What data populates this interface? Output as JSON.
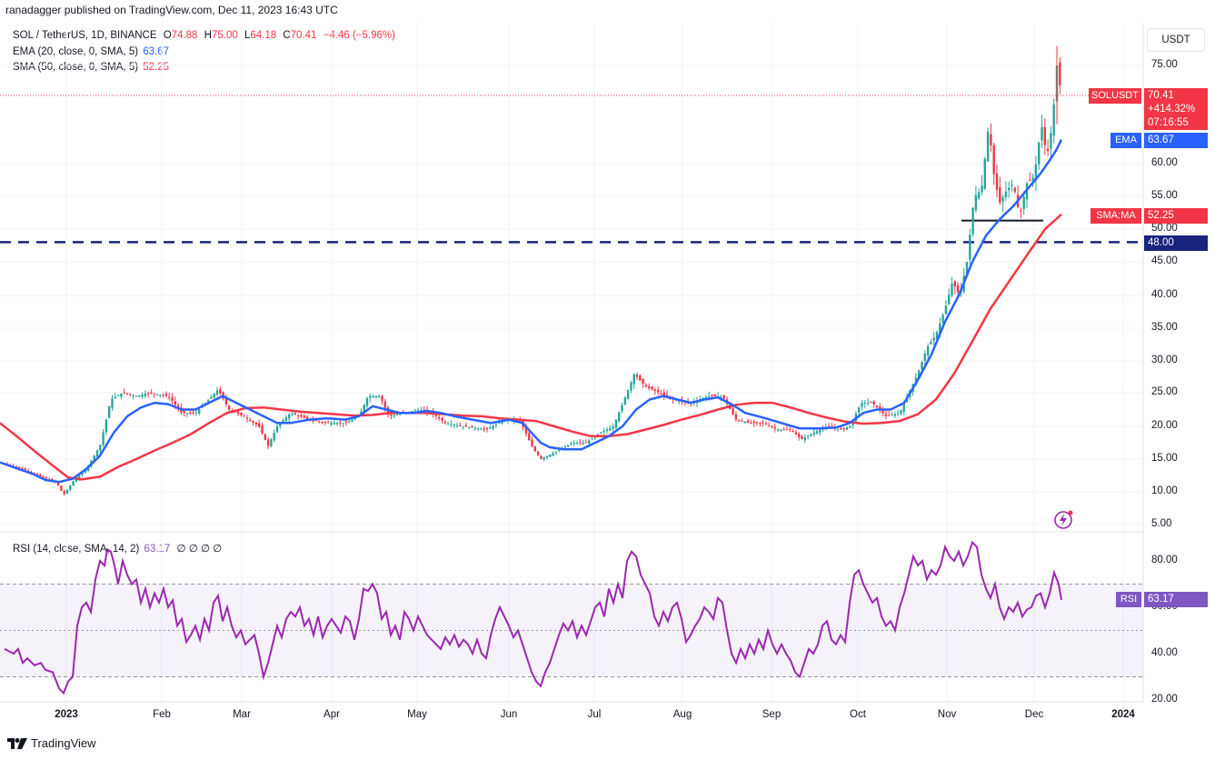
{
  "header": {
    "published": "ranadagger published on TradingView.com, Dec 11, 2023 16:43 UTC"
  },
  "legend": {
    "symbol": "SOL / TetherUS, 1D, BINANCE",
    "o_label": "O",
    "o": "74.88",
    "h_label": "H",
    "h": "75.00",
    "l_label": "L",
    "l": "64.18",
    "c_label": "C",
    "c": "70.41",
    "change": "−4.46 (−5.96%)",
    "ema_label": "EMA (20, close, 0, SMA, 5)",
    "ema_value": "63.67",
    "sma_label": "SMA (50, close, 0, SMA, 5)",
    "sma_value": "52.25",
    "rsi_label": "RSI (14, close, SMA, 14, 2)",
    "rsi_value": "63.17",
    "rsi_extra": "∅ ∅ ∅ ∅"
  },
  "axis": {
    "currency_button": "USDT"
  },
  "price_tags": {
    "sol_name": "SOLUSDT",
    "sol_price": "70.41",
    "sol_change": "+414.32%",
    "sol_countdown": "07:16:55",
    "ema_name": "EMA",
    "ema_value": "63.67",
    "sma_name": "SMA:MA",
    "sma_value": "52.25",
    "level_value": "48.00",
    "rsi_name": "RSI",
    "rsi_value": "63.17"
  },
  "footer": {
    "brand": "TradingView"
  },
  "colors": {
    "up": "#26a69a",
    "down": "#f23645",
    "ema": "#2962ff",
    "sma": "#f23645",
    "rsi": "#9c27b0",
    "level": "#1a237e"
  },
  "chart_data": {
    "type": "candlestick",
    "price_ticks": [
      "75.00",
      "60.00",
      "55.00",
      "50.00",
      "45.00",
      "40.00",
      "35.00",
      "30.00",
      "25.00",
      "20.00",
      "15.00",
      "10.00",
      "5.00"
    ],
    "rsi_ticks": [
      "80.00",
      "60.00",
      "40.00",
      "20.00"
    ],
    "x_ticks": [
      "2023",
      "Feb",
      "Mar",
      "Apr",
      "May",
      "Jun",
      "Jul",
      "Aug",
      "Sep",
      "Oct",
      "Nov",
      "Dec",
      "2024"
    ],
    "support_level": 48.0,
    "rsi_band": [
      30,
      70
    ],
    "rsi_midline": 50,
    "ema20": [
      [
        0,
        14.5
      ],
      [
        20,
        13.5
      ],
      [
        35,
        12.8
      ],
      [
        50,
        11.8
      ],
      [
        65,
        11.5
      ],
      [
        80,
        12
      ],
      [
        95,
        13.5
      ],
      [
        110,
        15.5
      ],
      [
        125,
        19
      ],
      [
        140,
        21.5
      ],
      [
        155,
        22.8
      ],
      [
        170,
        23.5
      ],
      [
        185,
        23.3
      ],
      [
        200,
        22.5
      ],
      [
        215,
        22.5
      ],
      [
        230,
        23.5
      ],
      [
        245,
        24.5
      ],
      [
        260,
        23.5
      ],
      [
        275,
        22.5
      ],
      [
        290,
        21.5
      ],
      [
        305,
        20.5
      ],
      [
        320,
        20.5
      ],
      [
        340,
        21
      ],
      [
        360,
        21.2
      ],
      [
        380,
        21
      ],
      [
        395,
        21.5
      ],
      [
        410,
        23
      ],
      [
        425,
        22.5
      ],
      [
        440,
        22
      ],
      [
        455,
        22
      ],
      [
        470,
        22.3
      ],
      [
        485,
        22
      ],
      [
        500,
        21.5
      ],
      [
        520,
        21
      ],
      [
        540,
        20.5
      ],
      [
        560,
        21
      ],
      [
        575,
        20.5
      ],
      [
        585,
        19
      ],
      [
        595,
        17.5
      ],
      [
        605,
        16.8
      ],
      [
        620,
        16.5
      ],
      [
        640,
        16.5
      ],
      [
        655,
        17.5
      ],
      [
        670,
        18.5
      ],
      [
        685,
        20
      ],
      [
        700,
        22.5
      ],
      [
        715,
        24
      ],
      [
        730,
        24.5
      ],
      [
        745,
        24
      ],
      [
        760,
        23.5
      ],
      [
        775,
        24
      ],
      [
        790,
        24.3
      ],
      [
        805,
        23.3
      ],
      [
        820,
        22
      ],
      [
        840,
        21.3
      ],
      [
        860,
        20.5
      ],
      [
        880,
        19.7
      ],
      [
        900,
        19.7
      ],
      [
        920,
        19.8
      ],
      [
        935,
        20.5
      ],
      [
        950,
        22
      ],
      [
        965,
        22.5
      ],
      [
        980,
        22.5
      ],
      [
        995,
        23.5
      ],
      [
        1010,
        27
      ],
      [
        1025,
        31
      ],
      [
        1040,
        36
      ],
      [
        1055,
        40
      ],
      [
        1070,
        45
      ],
      [
        1085,
        49
      ],
      [
        1100,
        51.5
      ],
      [
        1115,
        53.5
      ],
      [
        1130,
        56
      ],
      [
        1145,
        58.5
      ],
      [
        1155,
        60.5
      ],
      [
        1162,
        62
      ],
      [
        1168,
        63.67
      ]
    ],
    "sma50": [
      [
        0,
        20.5
      ],
      [
        20,
        18.3
      ],
      [
        40,
        16
      ],
      [
        60,
        13.8
      ],
      [
        75,
        12.2
      ],
      [
        90,
        11.9
      ],
      [
        110,
        12.3
      ],
      [
        130,
        13.8
      ],
      [
        150,
        15
      ],
      [
        170,
        16.3
      ],
      [
        190,
        17.5
      ],
      [
        210,
        18.8
      ],
      [
        230,
        20.5
      ],
      [
        250,
        22
      ],
      [
        270,
        22.7
      ],
      [
        290,
        22.8
      ],
      [
        310,
        22.5
      ],
      [
        330,
        22.2
      ],
      [
        350,
        22
      ],
      [
        370,
        21.8
      ],
      [
        390,
        21.6
      ],
      [
        410,
        21.7
      ],
      [
        430,
        22
      ],
      [
        450,
        22
      ],
      [
        470,
        22
      ],
      [
        490,
        21.8
      ],
      [
        510,
        21.6
      ],
      [
        530,
        21.5
      ],
      [
        550,
        21.2
      ],
      [
        570,
        21
      ],
      [
        590,
        20.8
      ],
      [
        610,
        20
      ],
      [
        630,
        19.2
      ],
      [
        650,
        18.5
      ],
      [
        670,
        18.5
      ],
      [
        690,
        18.8
      ],
      [
        710,
        19.5
      ],
      [
        730,
        20.2
      ],
      [
        750,
        21
      ],
      [
        770,
        21.7
      ],
      [
        790,
        22.5
      ],
      [
        810,
        23.2
      ],
      [
        830,
        23.5
      ],
      [
        850,
        23.5
      ],
      [
        870,
        22.8
      ],
      [
        890,
        22
      ],
      [
        910,
        21.3
      ],
      [
        930,
        20.7
      ],
      [
        950,
        20.4
      ],
      [
        970,
        20.5
      ],
      [
        990,
        20.8
      ],
      [
        1010,
        21.8
      ],
      [
        1030,
        24
      ],
      [
        1050,
        28
      ],
      [
        1070,
        33
      ],
      [
        1090,
        38
      ],
      [
        1110,
        42
      ],
      [
        1130,
        46
      ],
      [
        1150,
        50
      ],
      [
        1168,
        52.25
      ]
    ],
    "rsi": [
      [
        5,
        42
      ],
      [
        15,
        40
      ],
      [
        20,
        42
      ],
      [
        25,
        36
      ],
      [
        30,
        38
      ],
      [
        38,
        35
      ],
      [
        45,
        36
      ],
      [
        50,
        33
      ],
      [
        58,
        32
      ],
      [
        65,
        25
      ],
      [
        70,
        23
      ],
      [
        75,
        28
      ],
      [
        80,
        30
      ],
      [
        85,
        52
      ],
      [
        90,
        60
      ],
      [
        95,
        62
      ],
      [
        100,
        58
      ],
      [
        105,
        72
      ],
      [
        110,
        80
      ],
      [
        115,
        78
      ],
      [
        118,
        85
      ],
      [
        122,
        84
      ],
      [
        126,
        78
      ],
      [
        130,
        70
      ],
      [
        135,
        80
      ],
      [
        140,
        74
      ],
      [
        145,
        70
      ],
      [
        150,
        72
      ],
      [
        155,
        62
      ],
      [
        160,
        68
      ],
      [
        165,
        60
      ],
      [
        170,
        66
      ],
      [
        175,
        62
      ],
      [
        180,
        68
      ],
      [
        185,
        60
      ],
      [
        190,
        63
      ],
      [
        195,
        52
      ],
      [
        200,
        55
      ],
      [
        205,
        45
      ],
      [
        210,
        48
      ],
      [
        215,
        52
      ],
      [
        220,
        46
      ],
      [
        225,
        55
      ],
      [
        230,
        50
      ],
      [
        235,
        62
      ],
      [
        240,
        65
      ],
      [
        245,
        54
      ],
      [
        250,
        60
      ],
      [
        255,
        52
      ],
      [
        260,
        47
      ],
      [
        265,
        50
      ],
      [
        270,
        44
      ],
      [
        275,
        46
      ],
      [
        280,
        48
      ],
      [
        285,
        40
      ],
      [
        290,
        30
      ],
      [
        295,
        36
      ],
      [
        300,
        44
      ],
      [
        305,
        52
      ],
      [
        310,
        47
      ],
      [
        315,
        55
      ],
      [
        320,
        58
      ],
      [
        325,
        56
      ],
      [
        330,
        60
      ],
      [
        335,
        52
      ],
      [
        340,
        55
      ],
      [
        345,
        48
      ],
      [
        350,
        56
      ],
      [
        355,
        47
      ],
      [
        360,
        52
      ],
      [
        365,
        55
      ],
      [
        370,
        52
      ],
      [
        375,
        49
      ],
      [
        380,
        56
      ],
      [
        385,
        54
      ],
      [
        390,
        46
      ],
      [
        395,
        55
      ],
      [
        400,
        68
      ],
      [
        405,
        67
      ],
      [
        410,
        70
      ],
      [
        415,
        66
      ],
      [
        420,
        55
      ],
      [
        425,
        58
      ],
      [
        430,
        48
      ],
      [
        435,
        52
      ],
      [
        440,
        46
      ],
      [
        445,
        58
      ],
      [
        450,
        55
      ],
      [
        455,
        50
      ],
      [
        460,
        56
      ],
      [
        465,
        52
      ],
      [
        470,
        48
      ],
      [
        475,
        46
      ],
      [
        480,
        44
      ],
      [
        485,
        42
      ],
      [
        490,
        47
      ],
      [
        495,
        44
      ],
      [
        500,
        48
      ],
      [
        505,
        43
      ],
      [
        510,
        46
      ],
      [
        515,
        44
      ],
      [
        520,
        40
      ],
      [
        525,
        46
      ],
      [
        530,
        40
      ],
      [
        535,
        38
      ],
      [
        540,
        48
      ],
      [
        545,
        55
      ],
      [
        550,
        60
      ],
      [
        555,
        56
      ],
      [
        560,
        52
      ],
      [
        565,
        47
      ],
      [
        570,
        50
      ],
      [
        575,
        44
      ],
      [
        580,
        38
      ],
      [
        585,
        32
      ],
      [
        590,
        28
      ],
      [
        595,
        26
      ],
      [
        600,
        32
      ],
      [
        605,
        36
      ],
      [
        610,
        42
      ],
      [
        615,
        48
      ],
      [
        620,
        53
      ],
      [
        625,
        50
      ],
      [
        630,
        54
      ],
      [
        635,
        47
      ],
      [
        640,
        52
      ],
      [
        645,
        48
      ],
      [
        650,
        54
      ],
      [
        655,
        60
      ],
      [
        660,
        62
      ],
      [
        665,
        56
      ],
      [
        670,
        68
      ],
      [
        675,
        62
      ],
      [
        680,
        70
      ],
      [
        685,
        64
      ],
      [
        690,
        80
      ],
      [
        695,
        84
      ],
      [
        700,
        82
      ],
      [
        705,
        74
      ],
      [
        710,
        70
      ],
      [
        715,
        66
      ],
      [
        720,
        56
      ],
      [
        725,
        52
      ],
      [
        730,
        58
      ],
      [
        735,
        54
      ],
      [
        740,
        60
      ],
      [
        745,
        62
      ],
      [
        750,
        55
      ],
      [
        755,
        45
      ],
      [
        760,
        48
      ],
      [
        765,
        52
      ],
      [
        770,
        55
      ],
      [
        775,
        60
      ],
      [
        780,
        58
      ],
      [
        785,
        55
      ],
      [
        790,
        64
      ],
      [
        795,
        62
      ],
      [
        800,
        50
      ],
      [
        805,
        40
      ],
      [
        810,
        36
      ],
      [
        815,
        42
      ],
      [
        820,
        38
      ],
      [
        825,
        44
      ],
      [
        830,
        40
      ],
      [
        835,
        46
      ],
      [
        840,
        42
      ],
      [
        845,
        50
      ],
      [
        850,
        44
      ],
      [
        855,
        40
      ],
      [
        860,
        44
      ],
      [
        865,
        40
      ],
      [
        870,
        37
      ],
      [
        875,
        32
      ],
      [
        880,
        30
      ],
      [
        885,
        36
      ],
      [
        890,
        42
      ],
      [
        895,
        40
      ],
      [
        900,
        44
      ],
      [
        905,
        52
      ],
      [
        910,
        54
      ],
      [
        915,
        46
      ],
      [
        920,
        44
      ],
      [
        925,
        48
      ],
      [
        930,
        45
      ],
      [
        935,
        62
      ],
      [
        940,
        74
      ],
      [
        945,
        76
      ],
      [
        950,
        70
      ],
      [
        955,
        66
      ],
      [
        960,
        62
      ],
      [
        965,
        64
      ],
      [
        970,
        56
      ],
      [
        975,
        52
      ],
      [
        980,
        54
      ],
      [
        985,
        50
      ],
      [
        990,
        60
      ],
      [
        995,
        66
      ],
      [
        1000,
        74
      ],
      [
        1005,
        82
      ],
      [
        1010,
        78
      ],
      [
        1015,
        80
      ],
      [
        1020,
        72
      ],
      [
        1025,
        76
      ],
      [
        1030,
        74
      ],
      [
        1035,
        78
      ],
      [
        1040,
        86
      ],
      [
        1045,
        82
      ],
      [
        1050,
        80
      ],
      [
        1055,
        84
      ],
      [
        1060,
        78
      ],
      [
        1065,
        82
      ],
      [
        1070,
        88
      ],
      [
        1075,
        86
      ],
      [
        1080,
        74
      ],
      [
        1085,
        68
      ],
      [
        1090,
        64
      ],
      [
        1095,
        70
      ],
      [
        1100,
        60
      ],
      [
        1105,
        55
      ],
      [
        1110,
        60
      ],
      [
        1115,
        58
      ],
      [
        1120,
        62
      ],
      [
        1125,
        56
      ],
      [
        1130,
        59
      ],
      [
        1135,
        60
      ],
      [
        1140,
        65
      ],
      [
        1145,
        66
      ],
      [
        1150,
        60
      ],
      [
        1155,
        66
      ],
      [
        1160,
        75
      ],
      [
        1165,
        70
      ],
      [
        1168,
        63.17
      ]
    ],
    "candles_note": "OHLC candles reconstructed from visible price path"
  }
}
